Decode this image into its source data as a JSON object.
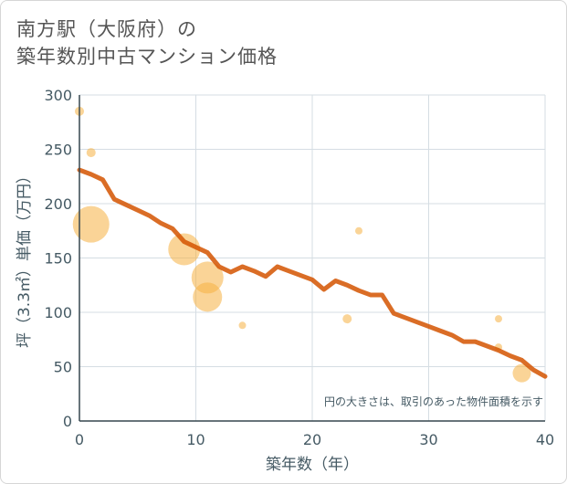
{
  "title": {
    "line1": "南方駅（大阪府）の",
    "line2": "築年数別中古マンション価格"
  },
  "chart_data": {
    "type": "scatter",
    "title": "南方駅（大阪府）の築年数別中古マンション価格",
    "xlabel": "築年数（年）",
    "ylabel": "坪（3.3㎡）単価（万円）",
    "xlim": [
      0,
      40
    ],
    "ylim": [
      0,
      300
    ],
    "x_ticks": [
      "0",
      "10",
      "20",
      "30",
      "40"
    ],
    "y_ticks": [
      "0",
      "50",
      "100",
      "150",
      "200",
      "250",
      "300"
    ],
    "grid": true,
    "note": "円の大きさは、取引のあった物件面積を示す",
    "colors": {
      "bubble": "#f5b041",
      "line": "#d35400",
      "grid": "#d5dde3",
      "axis": "#37474f"
    },
    "points": [
      {
        "x": 0,
        "y": 285,
        "size": 1
      },
      {
        "x": 1,
        "y": 247,
        "size": 1
      },
      {
        "x": 1,
        "y": 181,
        "size": 4
      },
      {
        "x": 9,
        "y": 158,
        "size": 3.5
      },
      {
        "x": 11,
        "y": 132,
        "size": 3.5
      },
      {
        "x": 11,
        "y": 114,
        "size": 3.2
      },
      {
        "x": 14,
        "y": 88,
        "size": 0.8
      },
      {
        "x": 23,
        "y": 94,
        "size": 1
      },
      {
        "x": 24,
        "y": 175,
        "size": 0.8
      },
      {
        "x": 36,
        "y": 94,
        "size": 0.8
      },
      {
        "x": 36,
        "y": 68,
        "size": 0.8
      },
      {
        "x": 38,
        "y": 44,
        "size": 2
      }
    ],
    "series": [
      {
        "name": "trend",
        "x": [
          0,
          1,
          2,
          3,
          4,
          5,
          6,
          7,
          8,
          9,
          10,
          11,
          12,
          13,
          14,
          15,
          16,
          17,
          18,
          19,
          20,
          21,
          22,
          23,
          24,
          25,
          26,
          27,
          28,
          29,
          30,
          31,
          32,
          33,
          34,
          35,
          36,
          37,
          38,
          39,
          40
        ],
        "values": [
          231,
          227,
          222,
          204,
          199,
          194,
          189,
          182,
          177,
          165,
          160,
          155,
          142,
          137,
          142,
          138,
          133,
          142,
          138,
          134,
          130,
          121,
          129,
          125,
          120,
          116,
          116,
          99,
          95,
          91,
          87,
          83,
          79,
          73,
          73,
          69,
          65,
          60,
          56,
          47,
          41
        ]
      }
    ]
  }
}
